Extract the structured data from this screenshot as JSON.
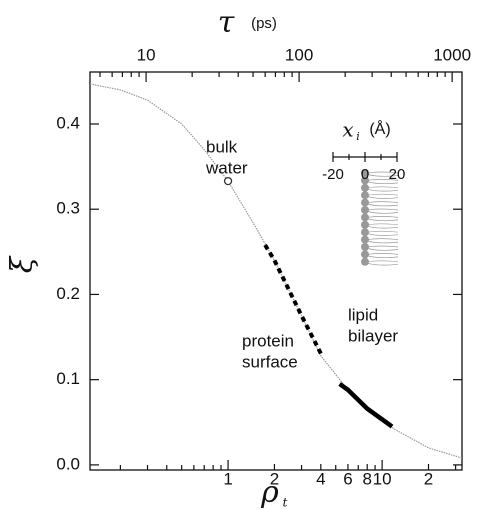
{
  "chart_data": {
    "type": "line",
    "top_axis": {
      "symbol": "τ",
      "unit": "(ps)",
      "xlim": [
        4.3,
        1160
      ],
      "xticks": [
        10,
        100,
        1000
      ],
      "xminorticks": [
        5,
        6,
        7,
        8,
        9,
        20,
        30,
        40,
        50,
        60,
        70,
        80,
        90,
        200,
        300,
        400,
        500,
        600,
        700,
        800,
        900
      ],
      "log": true
    },
    "x_label": {
      "symbol": "ρ",
      "subscript": "t"
    },
    "y_label": "ξ",
    "xlim": [
      0.127,
      33
    ],
    "log_x": true,
    "xticks": [
      1,
      2,
      4,
      6,
      8,
      10,
      {
        "value": 20,
        "label": "2"
      }
    ],
    "xminorticks": [
      0.2,
      0.3,
      0.4,
      0.5,
      0.6,
      0.7,
      0.8,
      0.9,
      3,
      5,
      7,
      9,
      30
    ],
    "ylim": [
      -0.006,
      0.461
    ],
    "yticks": [
      {
        "value": 0,
        "label": "0.0"
      },
      0.1,
      0.2,
      0.3,
      0.4
    ],
    "series": [
      {
        "name": "curve",
        "style": "thin",
        "color": "#999999",
        "x": [
          0.127,
          0.2,
          0.3,
          0.5,
          0.7,
          1,
          1.5,
          2,
          3,
          4,
          6,
          8,
          12,
          20,
          33
        ],
        "values": [
          0.447,
          0.44,
          0.428,
          0.4,
          0.37,
          0.333,
          0.28,
          0.24,
          0.175,
          0.128,
          0.088,
          0.066,
          0.042,
          0.02,
          0.008
        ]
      },
      {
        "name": "protein surface",
        "style": "dashed",
        "color": "#000000",
        "x": [
          1.74,
          2,
          3,
          4.1
        ],
        "values": [
          0.258,
          0.24,
          0.175,
          0.127
        ]
      },
      {
        "name": "lipid bilayer",
        "style": "thick",
        "color": "#000000",
        "x": [
          5.3,
          6,
          8,
          11.6
        ],
        "values": [
          0.095,
          0.088,
          0.066,
          0.045
        ]
      }
    ],
    "points": [
      {
        "x": 1,
        "value": 0.333
      }
    ],
    "annotations": [
      {
        "lines": [
          "bulk",
          "water"
        ]
      },
      {
        "lines": [
          "protein",
          "surface"
        ]
      },
      {
        "lines": [
          "lipid",
          "bilayer"
        ]
      }
    ],
    "inset": {
      "symbol": "x",
      "subscript": "i",
      "unit": "(Å)",
      "xlim": [
        -20,
        20
      ],
      "xticks": [
        -20,
        0,
        20
      ]
    }
  }
}
